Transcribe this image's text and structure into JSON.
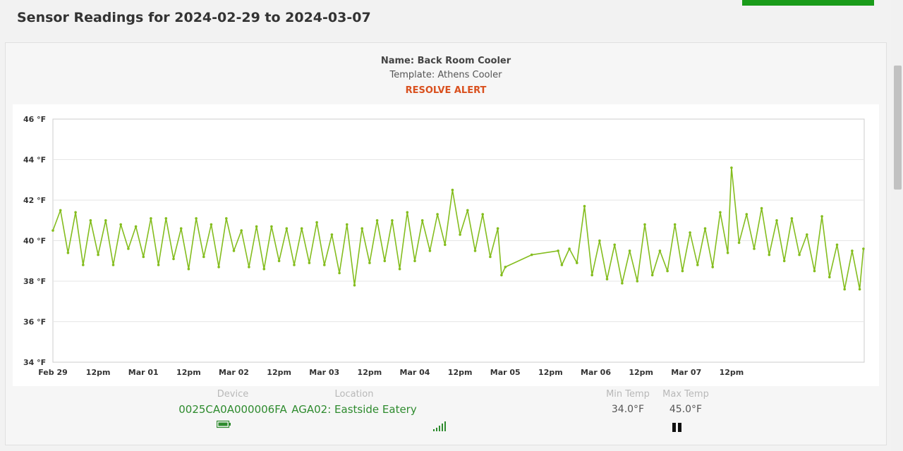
{
  "page": {
    "title": "Sensor Readings for 2024-02-29 to 2024-03-07"
  },
  "sensor": {
    "name": "Name: Back Room Cooler",
    "template": "Template: Athens Cooler",
    "alert_action": "RESOLVE ALERT"
  },
  "info": {
    "device_label": "Device",
    "device_value": "0025CA0A000006FA",
    "location_label": "Location",
    "location_value": "AGA02: Eastside Eatery",
    "min_temp_label": "Min Temp",
    "min_temp_value": "34.0°F",
    "max_temp_label": "Max Temp",
    "max_temp_value": "45.0°F",
    "icons": [
      "battery-icon",
      "signal-strength-icon",
      "pause-icon"
    ]
  },
  "colors": {
    "series": "#84bd1e",
    "accent_green": "#1a9c1a",
    "alert": "#d9501e",
    "link_green": "#2e8b2e"
  },
  "chart_data": {
    "type": "line",
    "title": "",
    "xlabel": "",
    "ylabel": "",
    "ylim": [
      34,
      46
    ],
    "y_ticks": [
      "34 °F",
      "36 °F",
      "38 °F",
      "40 °F",
      "42 °F",
      "44 °F",
      "46 °F"
    ],
    "x_ticks": [
      "Feb 29",
      "12pm",
      "Mar 01",
      "12pm",
      "Mar 02",
      "12pm",
      "Mar 03",
      "12pm",
      "Mar 04",
      "12pm",
      "Mar 05",
      "12pm",
      "Mar 06",
      "12pm",
      "Mar 07",
      "12pm"
    ],
    "x_unit": "hours since Feb 29 00:00",
    "grid": true,
    "series": [
      {
        "name": "",
        "points": [
          [
            0,
            40.5
          ],
          [
            2,
            41.5
          ],
          [
            4,
            39.4
          ],
          [
            6,
            41.4
          ],
          [
            8,
            38.8
          ],
          [
            10,
            41.0
          ],
          [
            12,
            39.3
          ],
          [
            14,
            41.0
          ],
          [
            16,
            38.8
          ],
          [
            18,
            40.8
          ],
          [
            20,
            39.6
          ],
          [
            22,
            40.7
          ],
          [
            24,
            39.2
          ],
          [
            26,
            41.1
          ],
          [
            28,
            38.8
          ],
          [
            30,
            41.1
          ],
          [
            32,
            39.1
          ],
          [
            34,
            40.6
          ],
          [
            36,
            38.6
          ],
          [
            38,
            41.1
          ],
          [
            40,
            39.2
          ],
          [
            42,
            40.8
          ],
          [
            44,
            38.7
          ],
          [
            46,
            41.1
          ],
          [
            48,
            39.5
          ],
          [
            50,
            40.5
          ],
          [
            52,
            38.7
          ],
          [
            54,
            40.7
          ],
          [
            56,
            38.6
          ],
          [
            58,
            40.7
          ],
          [
            60,
            39.0
          ],
          [
            62,
            40.6
          ],
          [
            64,
            38.8
          ],
          [
            66,
            40.6
          ],
          [
            68,
            38.9
          ],
          [
            70,
            40.9
          ],
          [
            72,
            38.8
          ],
          [
            74,
            40.3
          ],
          [
            76,
            38.4
          ],
          [
            78,
            40.8
          ],
          [
            80,
            37.8
          ],
          [
            82,
            40.6
          ],
          [
            84,
            38.9
          ],
          [
            86,
            41.0
          ],
          [
            88,
            39.0
          ],
          [
            90,
            41.0
          ],
          [
            92,
            38.6
          ],
          [
            94,
            41.4
          ],
          [
            96,
            39.0
          ],
          [
            98,
            41.0
          ],
          [
            100,
            39.5
          ],
          [
            102,
            41.3
          ],
          [
            104,
            39.8
          ],
          [
            106,
            42.5
          ],
          [
            108,
            40.3
          ],
          [
            110,
            41.5
          ],
          [
            112,
            39.5
          ],
          [
            114,
            41.3
          ],
          [
            116,
            39.2
          ],
          [
            118,
            40.6
          ],
          [
            119,
            38.3
          ],
          [
            120,
            38.7
          ],
          [
            127,
            39.3
          ],
          [
            134,
            39.5
          ],
          [
            135,
            38.8
          ],
          [
            137,
            39.6
          ],
          [
            139,
            38.9
          ],
          [
            141,
            41.7
          ],
          [
            143,
            38.3
          ],
          [
            145,
            40.0
          ],
          [
            147,
            38.1
          ],
          [
            149,
            39.8
          ],
          [
            151,
            37.9
          ],
          [
            153,
            39.5
          ],
          [
            155,
            38.0
          ],
          [
            157,
            40.8
          ],
          [
            159,
            38.3
          ],
          [
            161,
            39.5
          ],
          [
            163,
            38.5
          ],
          [
            165,
            40.8
          ],
          [
            167,
            38.5
          ],
          [
            169,
            40.4
          ],
          [
            171,
            38.8
          ],
          [
            173,
            40.6
          ],
          [
            175,
            38.7
          ],
          [
            177,
            41.4
          ],
          [
            179,
            39.4
          ],
          [
            180,
            43.6
          ],
          [
            182,
            39.9
          ],
          [
            184,
            41.3
          ],
          [
            186,
            39.6
          ],
          [
            188,
            41.6
          ],
          [
            190,
            39.3
          ],
          [
            192,
            41.0
          ],
          [
            194,
            39.0
          ],
          [
            196,
            41.1
          ],
          [
            198,
            39.3
          ],
          [
            200,
            40.3
          ],
          [
            202,
            38.5
          ],
          [
            204,
            41.2
          ],
          [
            206,
            38.2
          ],
          [
            208,
            39.8
          ],
          [
            210,
            37.6
          ],
          [
            212,
            39.5
          ],
          [
            214,
            37.6
          ],
          [
            215,
            39.6
          ]
        ]
      }
    ]
  }
}
